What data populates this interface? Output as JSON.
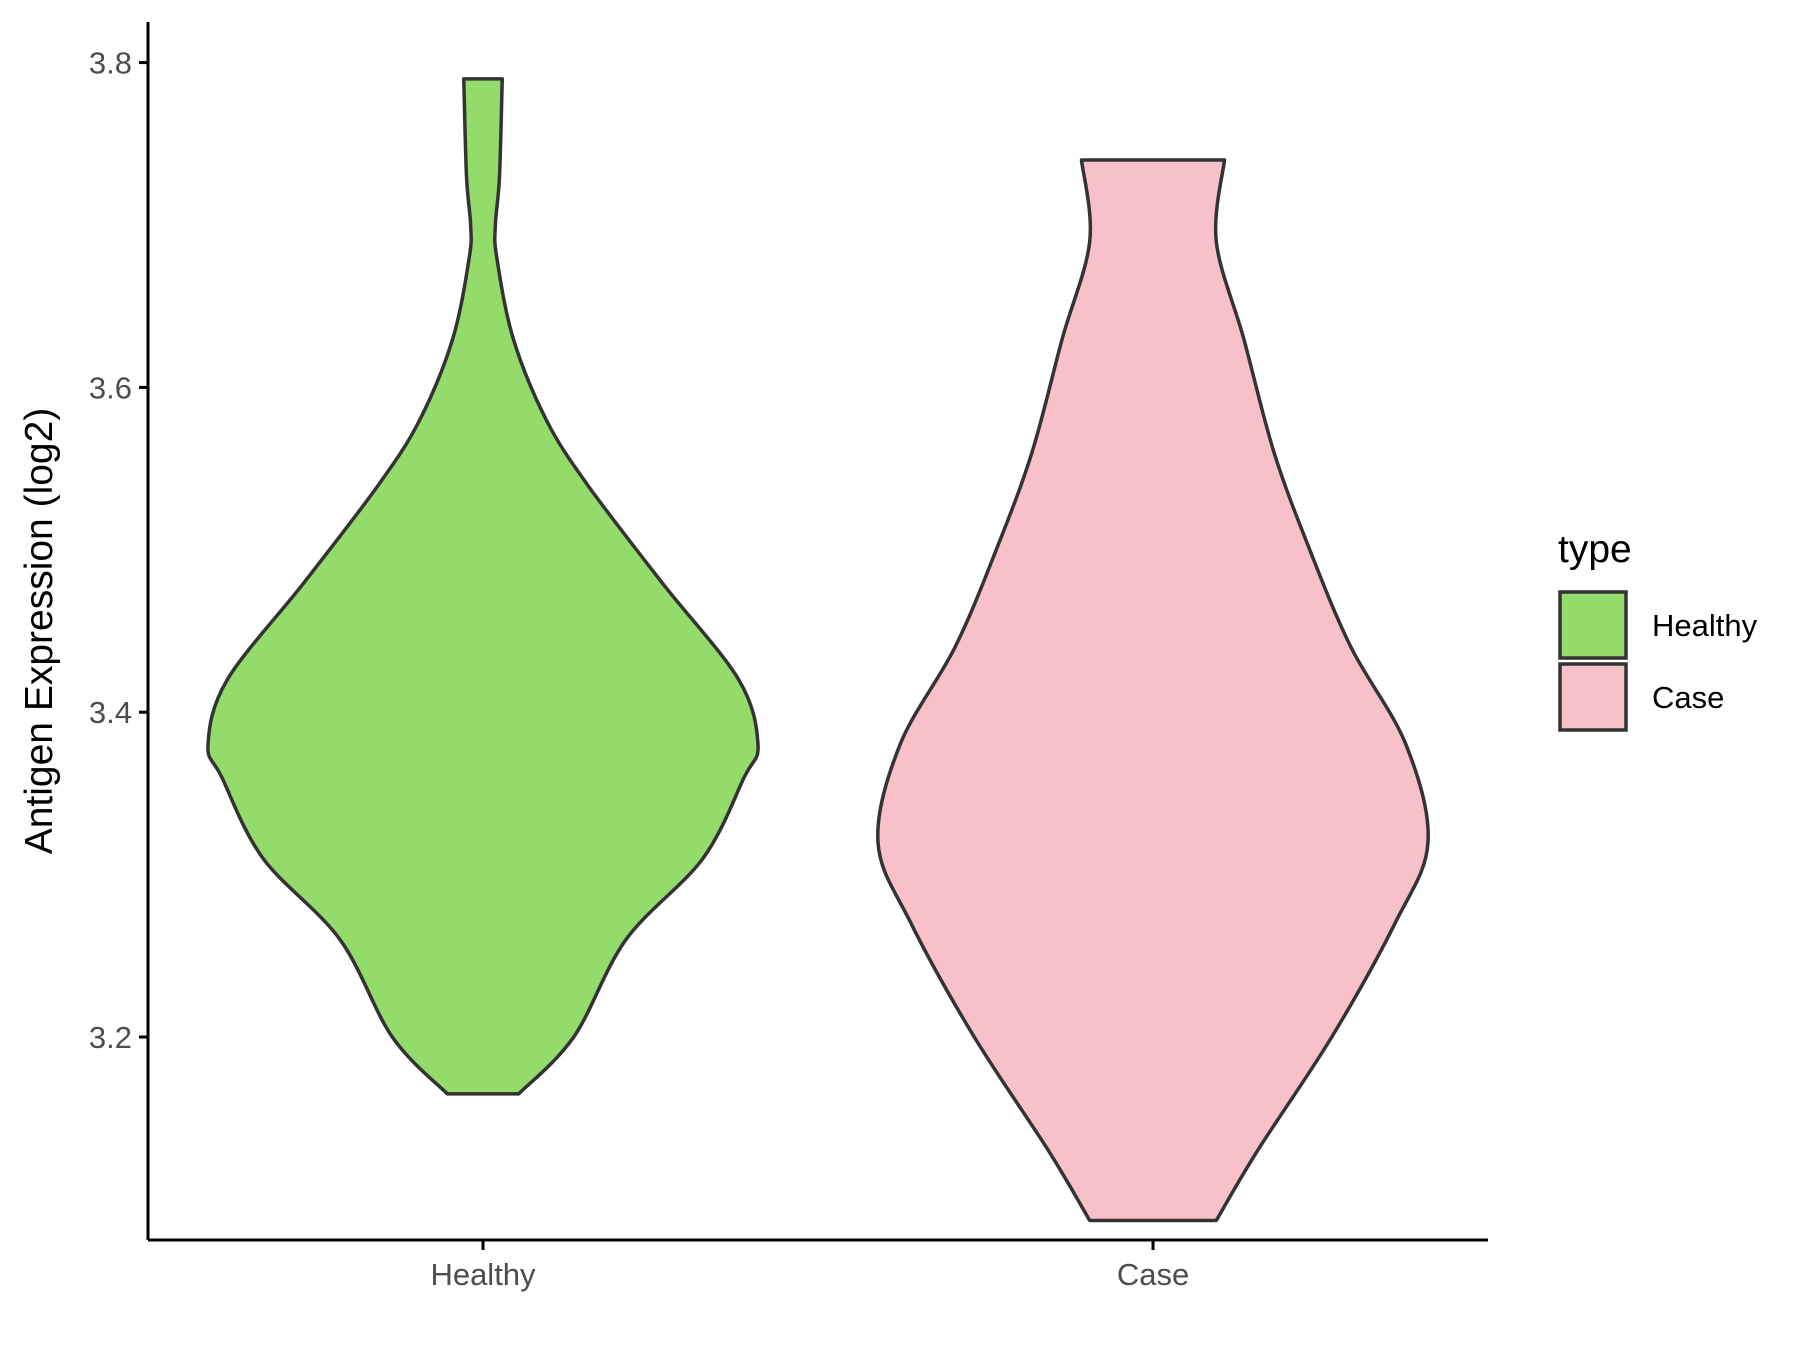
{
  "chart_data": {
    "type": "violin",
    "title": "",
    "xlabel": "",
    "ylabel": "Antigen Expression (log2)",
    "ylim": [
      3.075,
      3.825
    ],
    "yticks": [
      3.2,
      3.4,
      3.6,
      3.8
    ],
    "ytick_labels": [
      "3.2",
      "3.4",
      "3.6",
      "3.8"
    ],
    "categories": [
      "Healthy",
      "Case"
    ],
    "grid": false,
    "legend": {
      "title": "type",
      "position": "right",
      "entries": [
        {
          "label": "Healthy",
          "color": "#93db6a"
        },
        {
          "label": "Case",
          "color": "#f7c0cb"
        }
      ]
    },
    "series": [
      {
        "name": "Healthy",
        "color": "#93db6a",
        "min": 3.165,
        "max": 3.79,
        "density_profile": [
          {
            "y": 3.165,
            "w": 0.13
          },
          {
            "y": 3.2,
            "w": 0.33
          },
          {
            "y": 3.26,
            "w": 0.52
          },
          {
            "y": 3.31,
            "w": 0.8
          },
          {
            "y": 3.36,
            "w": 0.95
          },
          {
            "y": 3.38,
            "w": 1.0
          },
          {
            "y": 3.42,
            "w": 0.93
          },
          {
            "y": 3.48,
            "w": 0.65
          },
          {
            "y": 3.54,
            "w": 0.38
          },
          {
            "y": 3.58,
            "w": 0.23
          },
          {
            "y": 3.63,
            "w": 0.11
          },
          {
            "y": 3.68,
            "w": 0.05
          },
          {
            "y": 3.7,
            "w": 0.045
          },
          {
            "y": 3.73,
            "w": 0.06
          },
          {
            "y": 3.79,
            "w": 0.07
          }
        ]
      },
      {
        "name": "Case",
        "color": "#f7c0cb",
        "min": 3.087,
        "max": 3.74,
        "density_profile": [
          {
            "y": 3.087,
            "w": 0.23
          },
          {
            "y": 3.13,
            "w": 0.38
          },
          {
            "y": 3.2,
            "w": 0.65
          },
          {
            "y": 3.27,
            "w": 0.88
          },
          {
            "y": 3.32,
            "w": 1.0
          },
          {
            "y": 3.38,
            "w": 0.92
          },
          {
            "y": 3.44,
            "w": 0.72
          },
          {
            "y": 3.5,
            "w": 0.57
          },
          {
            "y": 3.56,
            "w": 0.44
          },
          {
            "y": 3.63,
            "w": 0.33
          },
          {
            "y": 3.69,
            "w": 0.23
          },
          {
            "y": 3.74,
            "w": 0.26
          }
        ]
      }
    ]
  }
}
